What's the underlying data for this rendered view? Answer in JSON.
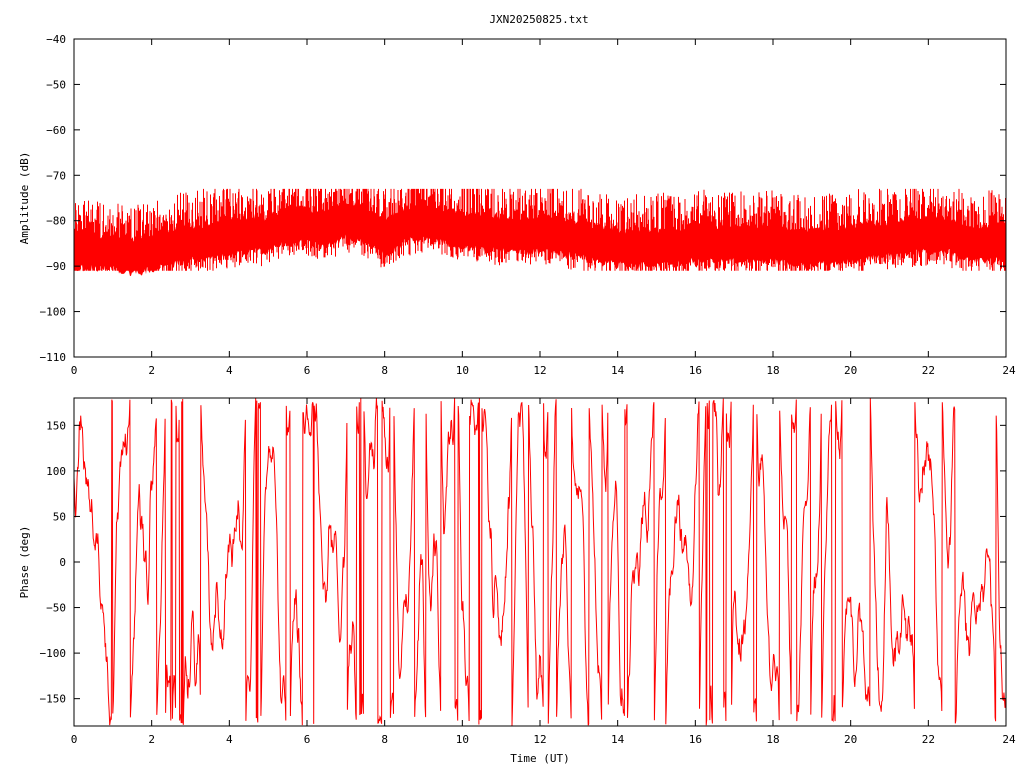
{
  "title": "JXN20250825.txt",
  "line_color": "#ff0000",
  "chart_data": [
    {
      "type": "line",
      "title": "JXN20250825.txt",
      "xlabel": "",
      "ylabel": "Amplitude (dB)",
      "xlim": [
        0,
        24
      ],
      "ylim": [
        -110,
        -40
      ],
      "xticks": [
        0,
        2,
        4,
        6,
        8,
        10,
        12,
        14,
        16,
        18,
        20,
        22,
        24
      ],
      "xtick_labels": [
        "0",
        "2",
        "4",
        "6",
        "8",
        "10",
        "12",
        "14",
        "16",
        "18",
        "20",
        "22",
        "24"
      ],
      "yticks": [
        -110,
        -100,
        -90,
        -80,
        -70,
        -60,
        -50,
        -40
      ],
      "ytick_labels": [
        "−110",
        "−100",
        "−90",
        "−80",
        "−70",
        "−60",
        "−50",
        "−40"
      ],
      "grid": false,
      "legend": "none",
      "envelope": {
        "x": [
          0,
          1,
          1.5,
          2,
          3,
          4,
          4.5,
          5,
          5.5,
          6,
          6.5,
          7,
          7.5,
          8,
          8.5,
          9,
          9.5,
          10,
          11,
          12,
          13,
          14,
          14.5,
          15,
          16,
          17,
          18,
          18.5,
          19,
          20,
          21,
          22,
          22.5,
          23,
          24
        ],
        "center": [
          -86.5,
          -87,
          -88,
          -87,
          -85,
          -84,
          -83,
          -83,
          -81,
          -81,
          -82,
          -80,
          -81,
          -84,
          -81,
          -80,
          -81,
          -82,
          -83,
          -83,
          -84,
          -86,
          -86,
          -86,
          -85,
          -85,
          -85,
          -86,
          -86,
          -85,
          -84,
          -83,
          -83,
          -85,
          -85
        ]
      },
      "peak_max": -73,
      "trough_min": -91
    },
    {
      "type": "line",
      "title": "",
      "xlabel": "Time (UT)",
      "ylabel": "Phase (deg)",
      "xlim": [
        0,
        24
      ],
      "ylim": [
        -180,
        180
      ],
      "xticks": [
        0,
        2,
        4,
        6,
        8,
        10,
        12,
        14,
        16,
        18,
        20,
        22,
        24
      ],
      "xtick_labels": [
        "0",
        "2",
        "4",
        "6",
        "8",
        "10",
        "12",
        "14",
        "16",
        "18",
        "20",
        "22",
        "24"
      ],
      "yticks": [
        -150,
        -100,
        -50,
        0,
        50,
        100,
        150
      ],
      "ytick_labels": [
        "−150",
        "−100",
        "−50",
        "0",
        "50",
        "100",
        "150"
      ],
      "grid": false,
      "legend": "none",
      "value_range": [
        -180,
        180
      ]
    }
  ]
}
